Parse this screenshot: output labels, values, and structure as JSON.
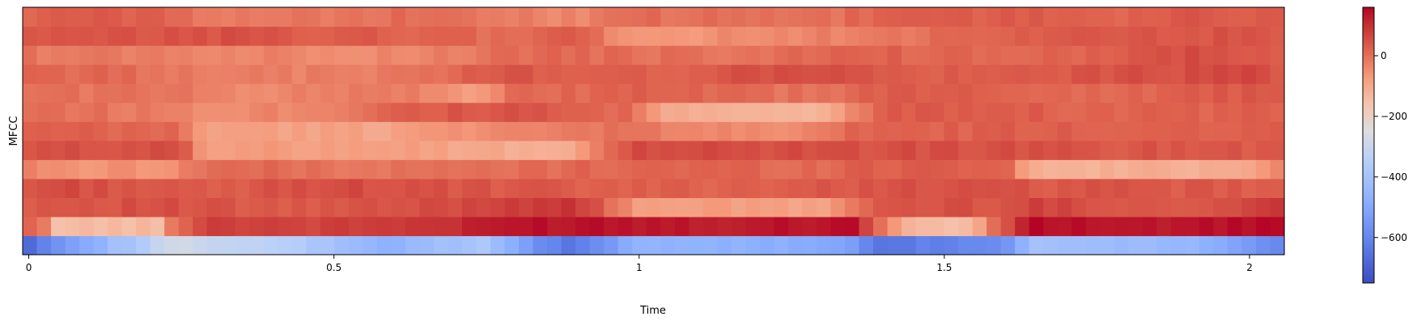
{
  "chart_data": {
    "type": "heatmap",
    "title": "",
    "xlabel": "Time",
    "ylabel": "MFCC",
    "x_ticks": [
      {
        "value": 0,
        "label": "0"
      },
      {
        "value": 0.5,
        "label": "0.5"
      },
      {
        "value": 1,
        "label": "1"
      },
      {
        "value": 1.5,
        "label": "1.5"
      },
      {
        "value": 2,
        "label": "2"
      }
    ],
    "xlim": [
      -0.01,
      2.057
    ],
    "n_coefficients": 13,
    "n_frames": 89,
    "colormap": "coolwarm",
    "colorbar": {
      "range": [
        -750,
        160
      ],
      "ticks": [
        {
          "value": 0,
          "label": "0"
        },
        {
          "value": -200,
          "label": "−200"
        },
        {
          "value": -400,
          "label": "−400"
        },
        {
          "value": -600,
          "label": "−600"
        }
      ]
    },
    "rows_anchors": [
      {
        "coef": 0,
        "t": [
          0,
          0.05,
          0.25,
          0.45,
          0.6,
          0.75,
          0.85,
          0.9,
          0.95,
          1.0,
          1.2,
          1.35,
          1.4,
          1.6,
          1.65,
          1.9,
          2.0,
          2.06
        ],
        "v": [
          -690,
          -560,
          -280,
          -360,
          -470,
          -380,
          -590,
          -650,
          -560,
          -460,
          -470,
          -520,
          -640,
          -580,
          -400,
          -440,
          -530,
          -600
        ]
      },
      {
        "coef": 1,
        "t": [
          0,
          0.03,
          0.05,
          0.22,
          0.25,
          0.3,
          0.5,
          0.7,
          0.8,
          0.95,
          1.2,
          1.35,
          1.4,
          1.45,
          1.55,
          1.6,
          1.65,
          1.9,
          2.0,
          2.06
        ],
        "v": [
          0,
          10,
          -140,
          -140,
          10,
          80,
          70,
          100,
          140,
          145,
          130,
          155,
          10,
          -140,
          -140,
          40,
          150,
          130,
          150,
          150
        ]
      },
      {
        "coef": 2,
        "t": [
          0,
          0.2,
          0.4,
          0.6,
          0.8,
          0.9,
          1.0,
          1.3,
          1.4,
          1.6,
          1.65,
          1.9,
          2.0,
          2.06
        ],
        "v": [
          40,
          50,
          30,
          40,
          80,
          100,
          -70,
          -90,
          40,
          50,
          70,
          30,
          60,
          100
        ]
      },
      {
        "coef": 3,
        "t": [
          0,
          0.05,
          0.2,
          0.3,
          0.5,
          0.7,
          1.0,
          1.3,
          1.4,
          1.6,
          1.7,
          2.0,
          2.06
        ],
        "v": [
          30,
          60,
          40,
          20,
          60,
          40,
          20,
          30,
          50,
          40,
          40,
          30,
          30
        ]
      },
      {
        "coef": 4,
        "t": [
          0,
          0.05,
          0.25,
          0.3,
          0.6,
          0.8,
          1.0,
          1.3,
          1.4,
          1.6,
          1.65,
          1.9,
          2.0,
          2.06
        ],
        "v": [
          -10,
          -60,
          -50,
          10,
          -10,
          0,
          20,
          10,
          30,
          30,
          -120,
          -110,
          -100,
          -10
        ]
      },
      {
        "coef": 5,
        "t": [
          0,
          0.25,
          0.3,
          0.6,
          0.8,
          0.9,
          1.0,
          1.35,
          1.4,
          1.6,
          1.7,
          2.0,
          2.06
        ],
        "v": [
          40,
          60,
          -80,
          -70,
          -110,
          -100,
          60,
          50,
          50,
          50,
          40,
          40,
          50
        ]
      },
      {
        "coef": 6,
        "t": [
          0,
          0.25,
          0.3,
          0.6,
          0.7,
          0.9,
          1.0,
          1.05,
          1.3,
          1.35,
          1.4,
          2.06
        ],
        "v": [
          20,
          10,
          -80,
          -90,
          -50,
          -30,
          10,
          -40,
          -40,
          10,
          20,
          30
        ]
      },
      {
        "coef": 7,
        "t": [
          0,
          0.15,
          0.3,
          0.5,
          0.6,
          0.8,
          1.0,
          1.05,
          1.3,
          1.35,
          1.4,
          1.6,
          1.7,
          2.06
        ],
        "v": [
          10,
          -10,
          -40,
          -30,
          30,
          40,
          0,
          -110,
          -120,
          -60,
          30,
          40,
          20,
          20
        ]
      },
      {
        "coef": 8,
        "t": [
          0,
          0.2,
          0.4,
          0.6,
          0.75,
          0.8,
          1.0,
          1.3,
          1.4,
          1.6,
          1.8,
          2.0,
          2.06
        ],
        "v": [
          0,
          -10,
          -40,
          -10,
          -80,
          0,
          20,
          -10,
          30,
          20,
          10,
          40,
          20
        ]
      },
      {
        "coef": 9,
        "t": [
          0,
          0.2,
          0.4,
          0.6,
          0.7,
          0.8,
          1.0,
          1.3,
          1.4,
          1.6,
          1.7,
          2.0,
          2.06
        ],
        "v": [
          20,
          0,
          -30,
          -20,
          10,
          40,
          20,
          60,
          30,
          20,
          40,
          60,
          40
        ]
      },
      {
        "coef": 10,
        "t": [
          0,
          0.3,
          0.5,
          0.7,
          0.8,
          1.0,
          1.2,
          1.3,
          1.4,
          1.6,
          1.8,
          1.9,
          2.06
        ],
        "v": [
          -10,
          -30,
          -40,
          -30,
          10,
          0,
          -10,
          10,
          20,
          10,
          20,
          60,
          20
        ]
      },
      {
        "coef": 11,
        "t": [
          0,
          0.2,
          0.4,
          0.5,
          0.6,
          0.8,
          0.9,
          1.0,
          1.2,
          1.4,
          1.6,
          1.8,
          2.0,
          2.06
        ],
        "v": [
          30,
          40,
          50,
          20,
          30,
          0,
          40,
          -80,
          -40,
          -20,
          20,
          40,
          40,
          30
        ]
      },
      {
        "coef": 12,
        "t": [
          0,
          0.2,
          0.25,
          0.4,
          0.6,
          0.8,
          0.9,
          1.0,
          1.3,
          1.4,
          1.6,
          1.8,
          2.0,
          2.06
        ],
        "v": [
          20,
          30,
          0,
          -20,
          0,
          -20,
          -40,
          0,
          -10,
          20,
          30,
          20,
          40,
          20
        ]
      }
    ]
  }
}
